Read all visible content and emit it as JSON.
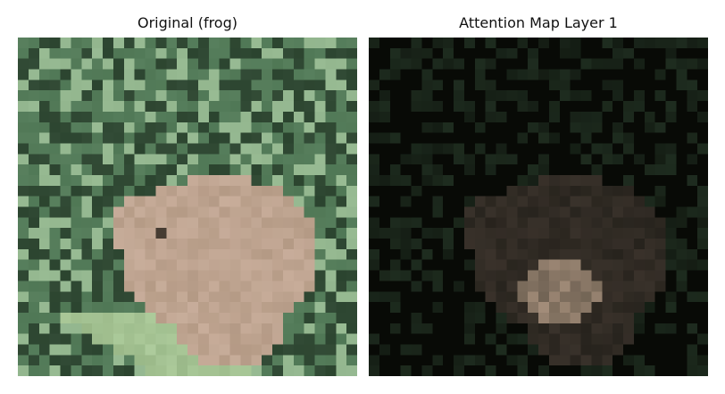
{
  "panels": [
    {
      "title": "Original (frog)"
    },
    {
      "title": "Attention Map Layer 1"
    }
  ],
  "palette": {
    "foliage_dark": "#2f4a33",
    "foliage_mid": "#4f7a55",
    "foliage_light": "#8fb58a",
    "frog_skin": "#b49a85",
    "frog_highlight": "#cdb2a0",
    "attention_dark": "#080a06",
    "attention_green": "#1e2c1f",
    "attention_high": "#c7ab94"
  }
}
